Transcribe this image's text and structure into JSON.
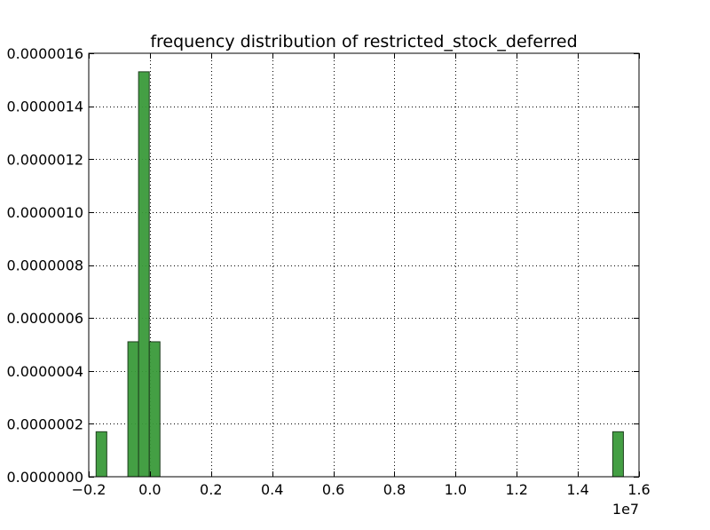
{
  "chart_data": {
    "type": "bar",
    "title": "frequency distribution of restricted_stock_deferred",
    "xlabel": "",
    "ylabel": "",
    "x_offset_label": "1e7",
    "xlim": [
      -2000000,
      16000000
    ],
    "ylim": [
      0,
      1.6e-06
    ],
    "grid": true,
    "bar_color": "#3a9a3a",
    "bar_edge_color": "#1f3f1f",
    "x_ticks": [
      {
        "value": -2000000,
        "label": "−0.2"
      },
      {
        "value": 0,
        "label": "0.0"
      },
      {
        "value": 2000000,
        "label": "0.2"
      },
      {
        "value": 4000000,
        "label": "0.4"
      },
      {
        "value": 6000000,
        "label": "0.6"
      },
      {
        "value": 8000000,
        "label": "0.8"
      },
      {
        "value": 10000000,
        "label": "1.0"
      },
      {
        "value": 12000000,
        "label": "1.2"
      },
      {
        "value": 14000000,
        "label": "1.4"
      },
      {
        "value": 16000000,
        "label": "1.6"
      }
    ],
    "y_ticks": [
      {
        "value": 0,
        "label": "0.0000000"
      },
      {
        "value": 2e-07,
        "label": "0.0000002"
      },
      {
        "value": 4e-07,
        "label": "0.0000004"
      },
      {
        "value": 6e-07,
        "label": "0.0000006"
      },
      {
        "value": 8e-07,
        "label": "0.0000008"
      },
      {
        "value": 1e-06,
        "label": "0.0000010"
      },
      {
        "value": 1.2e-06,
        "label": "0.0000012"
      },
      {
        "value": 1.4e-06,
        "label": "0.0000014"
      },
      {
        "value": 1.6e-06,
        "label": "0.0000016"
      }
    ],
    "bins": [
      {
        "x0": -1760000,
        "x1": -1410000,
        "value": 1.7e-07
      },
      {
        "x0": -720000,
        "x1": -370000,
        "value": 5.1e-07
      },
      {
        "x0": -370000,
        "x1": -20000,
        "value": 1.53e-06
      },
      {
        "x0": -20000,
        "x1": 330000,
        "value": 5.1e-07
      },
      {
        "x0": 15140000,
        "x1": 15490000,
        "value": 1.7e-07
      }
    ]
  }
}
